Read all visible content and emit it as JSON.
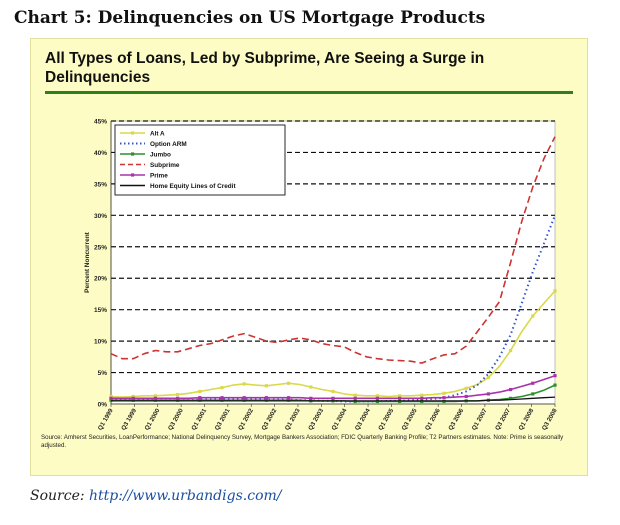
{
  "page": {
    "title": "Chart 5:  Delinquencies on US Mortgage Products",
    "source_label": "Source:",
    "source_url": "http://www.urbandigs.com/"
  },
  "chart_data": {
    "type": "line",
    "title": "All Types of Loans, Led by Subprime, Are Seeing a Surge in Delinquencies",
    "xlabel": "",
    "ylabel": "Percent Noncurrent",
    "ylim": [
      0,
      45
    ],
    "yticks": [
      0,
      5,
      10,
      15,
      20,
      25,
      30,
      35,
      40,
      45
    ],
    "ytick_labels": [
      "0%",
      "5%",
      "10%",
      "15%",
      "20%",
      "25%",
      "30%",
      "35%",
      "40%",
      "45%"
    ],
    "x_tick_labels": [
      "Q1 1999",
      "Q3 1999",
      "Q1 2000",
      "Q3 2000",
      "Q1 2001",
      "Q3 2001",
      "Q1 2002",
      "Q3 2002",
      "Q1 2003",
      "Q3 2003",
      "Q1 2004",
      "Q3 2004",
      "Q1 2005",
      "Q3 2005",
      "Q1 2006",
      "Q3 2006",
      "Q1 2007",
      "Q3 2007",
      "Q1 2008",
      "Q3 2008"
    ],
    "grid": "horizontal-dashed",
    "legend_position": "top-left",
    "source_note": "Source: Amherst Securities, LoanPerformance; National Delinquency Survey, Mortgage Bankers Association; FDIC Quarterly Banking Profile; T2 Partners estimates.  Note: Prime is seasonally adjusted.",
    "series": [
      {
        "name": "Alt A",
        "color": "#d9d94a",
        "style": "solid-markers",
        "values": [
          1.2,
          1.1,
          1.2,
          1.3,
          1.3,
          1.4,
          1.5,
          1.7,
          2.0,
          2.3,
          2.6,
          3.0,
          3.2,
          3.0,
          2.9,
          3.1,
          3.3,
          3.1,
          2.7,
          2.3,
          2.0,
          1.6,
          1.4,
          1.3,
          1.3,
          1.2,
          1.3,
          1.3,
          1.4,
          1.5,
          1.7,
          2.0,
          2.5,
          3.1,
          4.2,
          6.0,
          8.5,
          11.5,
          14.0,
          16.0,
          18.0
        ]
      },
      {
        "name": "Option ARM",
        "color": "#3355cc",
        "style": "dotted",
        "values": [
          0.8,
          0.7,
          0.7,
          0.7,
          0.6,
          0.6,
          0.6,
          0.6,
          0.7,
          0.7,
          0.8,
          0.8,
          0.8,
          0.8,
          0.7,
          0.7,
          0.7,
          0.6,
          0.6,
          0.5,
          0.5,
          0.4,
          0.4,
          0.4,
          0.4,
          0.5,
          0.5,
          0.6,
          0.7,
          0.8,
          1.0,
          1.4,
          2.0,
          3.0,
          4.8,
          7.5,
          11.0,
          16.0,
          21.0,
          25.5,
          30.0
        ]
      },
      {
        "name": "Jumbo",
        "color": "#2f8f2f",
        "style": "solid-markers",
        "values": [
          0.6,
          0.6,
          0.6,
          0.6,
          0.6,
          0.6,
          0.6,
          0.6,
          0.6,
          0.6,
          0.6,
          0.6,
          0.6,
          0.6,
          0.6,
          0.6,
          0.6,
          0.6,
          0.5,
          0.5,
          0.5,
          0.5,
          0.4,
          0.4,
          0.4,
          0.4,
          0.4,
          0.4,
          0.4,
          0.4,
          0.4,
          0.4,
          0.5,
          0.5,
          0.6,
          0.7,
          0.9,
          1.2,
          1.6,
          2.2,
          3.0
        ]
      },
      {
        "name": "Subprime",
        "color": "#cc3333",
        "style": "dashed",
        "values": [
          8.0,
          7.2,
          7.2,
          8.0,
          8.5,
          8.3,
          8.3,
          8.8,
          9.3,
          9.6,
          10.2,
          10.8,
          11.2,
          10.6,
          10.0,
          9.8,
          10.2,
          10.5,
          10.2,
          9.6,
          9.3,
          9.1,
          8.2,
          7.5,
          7.2,
          7.0,
          6.9,
          6.8,
          6.5,
          7.2,
          7.8,
          8.0,
          9.2,
          11.5,
          13.8,
          16.3,
          22.5,
          29.0,
          34.5,
          39.0,
          42.5
        ]
      },
      {
        "name": "Prime",
        "color": "#aa33aa",
        "style": "solid-markers",
        "values": [
          0.9,
          0.9,
          0.9,
          0.9,
          0.9,
          0.9,
          0.9,
          0.9,
          1.0,
          1.0,
          1.0,
          1.0,
          1.0,
          1.0,
          1.0,
          1.0,
          1.0,
          1.0,
          0.9,
          0.9,
          0.9,
          0.9,
          0.9,
          0.9,
          0.9,
          0.9,
          0.9,
          0.9,
          0.9,
          1.0,
          1.0,
          1.1,
          1.2,
          1.4,
          1.6,
          1.9,
          2.3,
          2.8,
          3.3,
          3.9,
          4.5
        ]
      },
      {
        "name": "Home Equity Lines of Credit",
        "color": "#111111",
        "style": "solid",
        "values": [
          0.5,
          0.5,
          0.5,
          0.5,
          0.5,
          0.5,
          0.5,
          0.5,
          0.5,
          0.5,
          0.5,
          0.5,
          0.5,
          0.5,
          0.5,
          0.5,
          0.5,
          0.5,
          0.5,
          0.5,
          0.5,
          0.5,
          0.5,
          0.5,
          0.5,
          0.5,
          0.5,
          0.5,
          0.5,
          0.5,
          0.5,
          0.5,
          0.5,
          0.5,
          0.6,
          0.6,
          0.7,
          0.8,
          0.9,
          1.0,
          1.1
        ]
      }
    ]
  }
}
